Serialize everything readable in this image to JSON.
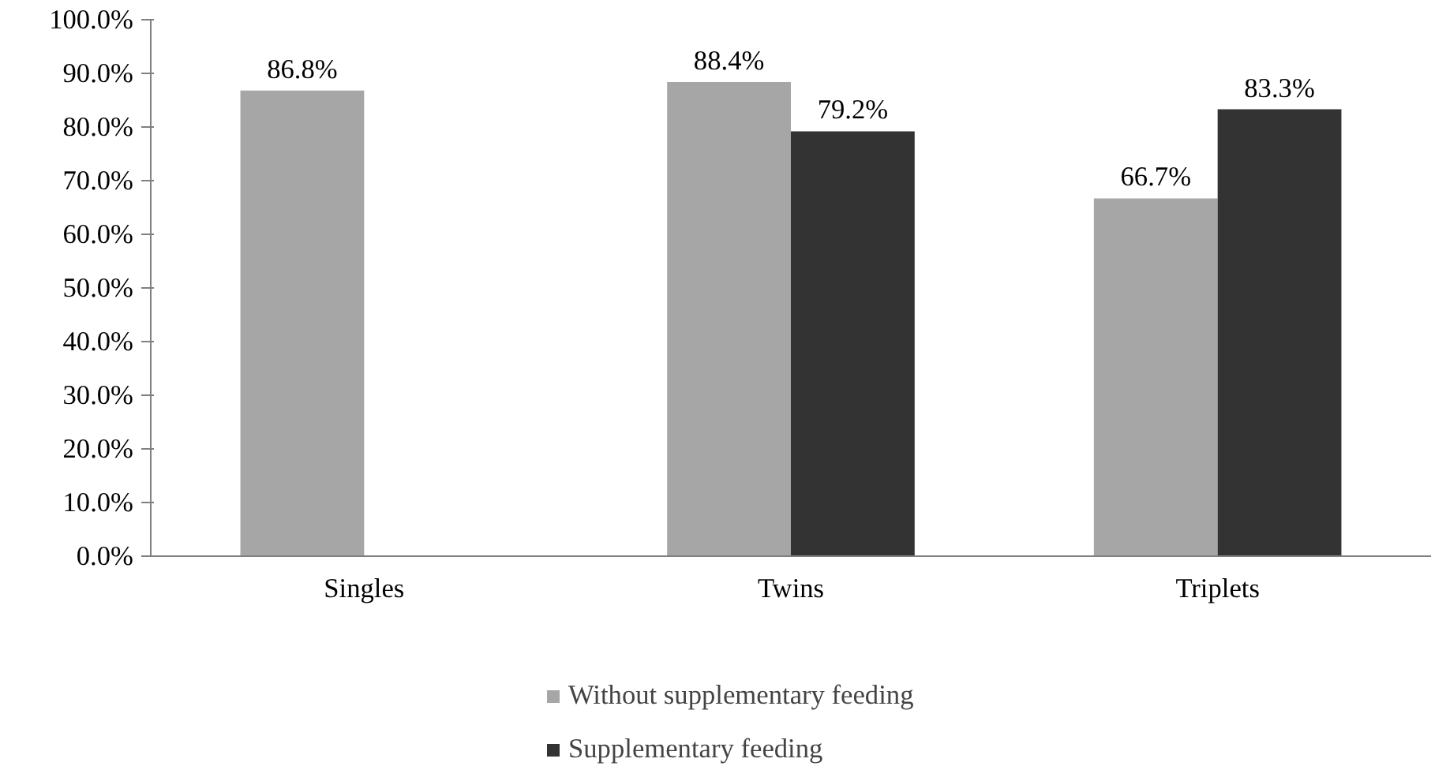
{
  "chart_data": {
    "type": "bar",
    "categories": [
      "Singles",
      "Twins",
      "Triplets"
    ],
    "series": [
      {
        "name": "Without supplementary feeding",
        "color": "#a6a6a6",
        "values": [
          86.8,
          88.4,
          66.7
        ],
        "value_labels": [
          "86.8%",
          "88.4%",
          "66.7%"
        ]
      },
      {
        "name": "Supplementary feeding",
        "color": "#333333",
        "values": [
          null,
          79.2,
          83.3
        ],
        "value_labels": [
          null,
          "79.2%",
          "83.3%"
        ]
      }
    ],
    "ylim": [
      0,
      100
    ],
    "yticks": [
      {
        "value": 0,
        "label": "0.0%"
      },
      {
        "value": 10,
        "label": "10.0%"
      },
      {
        "value": 20,
        "label": "20.0%"
      },
      {
        "value": 30,
        "label": "30.0%"
      },
      {
        "value": 40,
        "label": "40.0%"
      },
      {
        "value": 50,
        "label": "50.0%"
      },
      {
        "value": 60,
        "label": "60.0%"
      },
      {
        "value": 70,
        "label": "70.0%"
      },
      {
        "value": 80,
        "label": "80.0%"
      },
      {
        "value": 90,
        "label": "90.0%"
      },
      {
        "value": 100,
        "label": "100.0%"
      }
    ],
    "grid": false,
    "legend": "bottom"
  }
}
